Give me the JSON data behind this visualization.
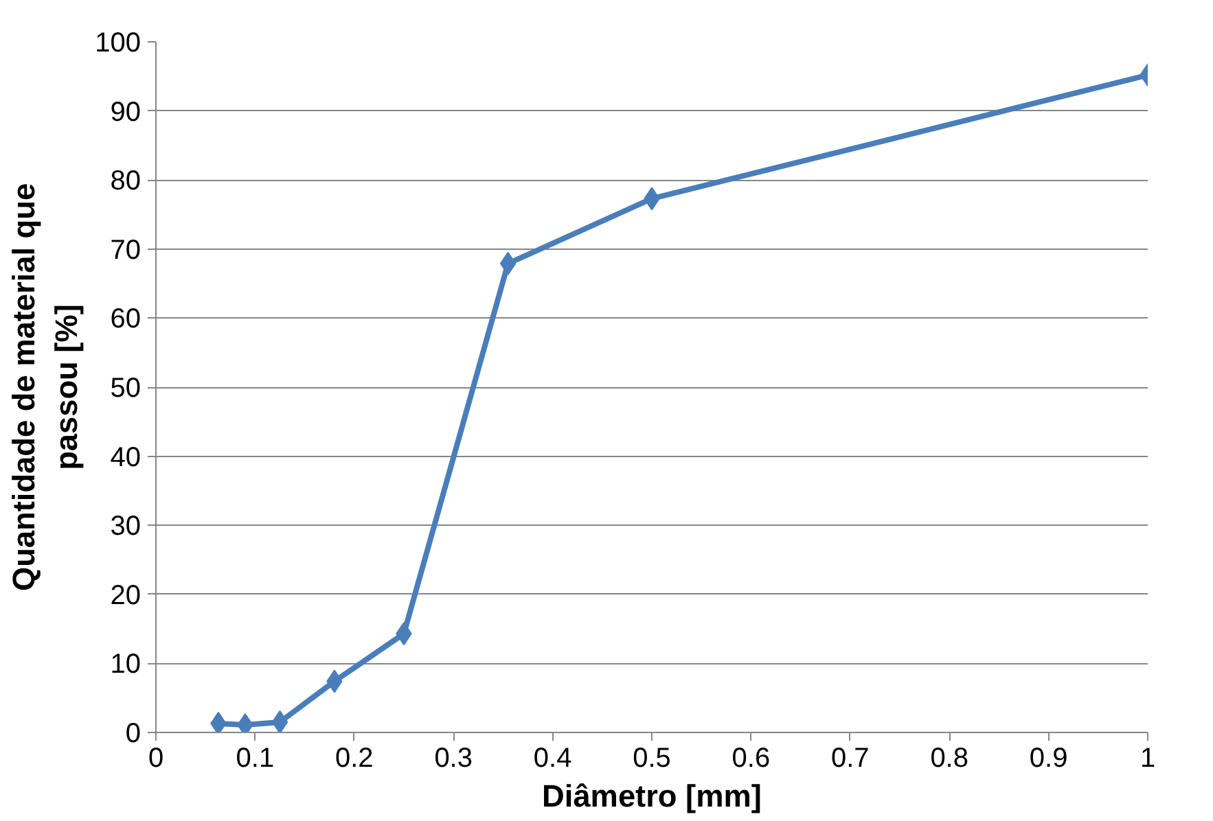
{
  "chart_data": {
    "type": "line",
    "xlabel": "Diâmetro [mm]",
    "ylabel": "Quantidade de material que passou [%]",
    "x": [
      0.063,
      0.09,
      0.125,
      0.18,
      0.25,
      0.355,
      0.5,
      1.0
    ],
    "series": [
      {
        "color": "#4a7ebb",
        "values": [
          1.3,
          1.1,
          1.5,
          7.4,
          14.3,
          67.9,
          77.3,
          95.2
        ]
      }
    ],
    "xlim": [
      0,
      1
    ],
    "xticks": [
      0,
      0.1,
      0.2,
      0.3,
      0.4,
      0.5,
      0.6,
      0.7,
      0.8,
      0.9,
      1
    ],
    "ylim": [
      0,
      100
    ],
    "yticks": [
      0,
      10,
      20,
      30,
      40,
      50,
      60,
      70,
      80,
      90,
      100
    ],
    "grid": "y",
    "marker": "diamond",
    "line_style": "solid"
  }
}
